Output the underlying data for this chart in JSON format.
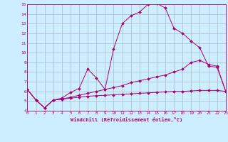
{
  "xlabel": "Windchill (Refroidissement éolien,°C)",
  "background_color": "#cceeff",
  "grid_color": "#aabbcc",
  "line_color": "#aa0077",
  "xmin": 0,
  "xmax": 23,
  "ymin": 4,
  "ymax": 15,
  "series": [
    [
      6.2,
      5.1,
      4.3,
      5.1,
      5.3,
      5.9,
      6.3,
      8.3,
      7.4,
      6.2,
      10.4,
      13.0,
      13.8,
      14.2,
      15.0,
      15.1,
      14.6,
      12.5,
      12.0,
      11.2,
      10.5,
      8.6,
      8.5,
      6.0
    ],
    [
      6.2,
      5.1,
      4.3,
      5.1,
      5.2,
      5.3,
      5.4,
      5.5,
      5.55,
      5.6,
      5.65,
      5.7,
      5.75,
      5.8,
      5.85,
      5.9,
      5.95,
      6.0,
      6.0,
      6.05,
      6.1,
      6.1,
      6.1,
      6.0
    ],
    [
      6.2,
      5.1,
      4.3,
      5.1,
      5.2,
      5.4,
      5.6,
      5.8,
      6.0,
      6.2,
      6.4,
      6.6,
      6.9,
      7.1,
      7.3,
      7.5,
      7.7,
      8.0,
      8.3,
      9.0,
      9.2,
      8.8,
      8.6,
      6.0
    ]
  ]
}
